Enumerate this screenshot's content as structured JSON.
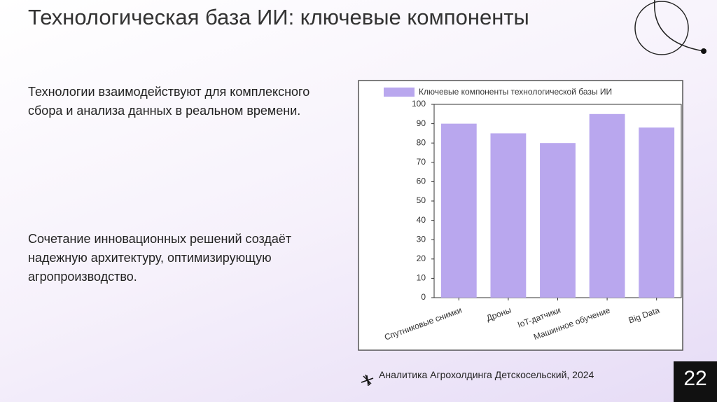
{
  "slide": {
    "title": "Технологическая база ИИ: ключевые компоненты",
    "paragraphs": [
      "Технологии взаимодействуют для комплексного сбора и анализа данных в реальном времени.",
      "Сочетание инновационных решений создаёт надежную архитектуру, оптимизирующую агропроизводство."
    ],
    "footer": "Аналитика Агрохолдинга Детскосельский, 2024",
    "page_number": "22"
  },
  "chart_data": {
    "type": "bar",
    "series": [
      {
        "name": "Ключевые компоненты технологической базы ИИ",
        "color": "#b9a7ee",
        "values": [
          90,
          85,
          80,
          95,
          88
        ]
      }
    ],
    "categories": [
      "Спутниковые снимки",
      "Дроны",
      "IoT-датчики",
      "Машинное обучение",
      "Big Data"
    ],
    "ylim": [
      0,
      100
    ],
    "yticks": [
      0,
      10,
      20,
      30,
      40,
      50,
      60,
      70,
      80,
      90,
      100
    ],
    "grid": false,
    "legend": "top"
  }
}
